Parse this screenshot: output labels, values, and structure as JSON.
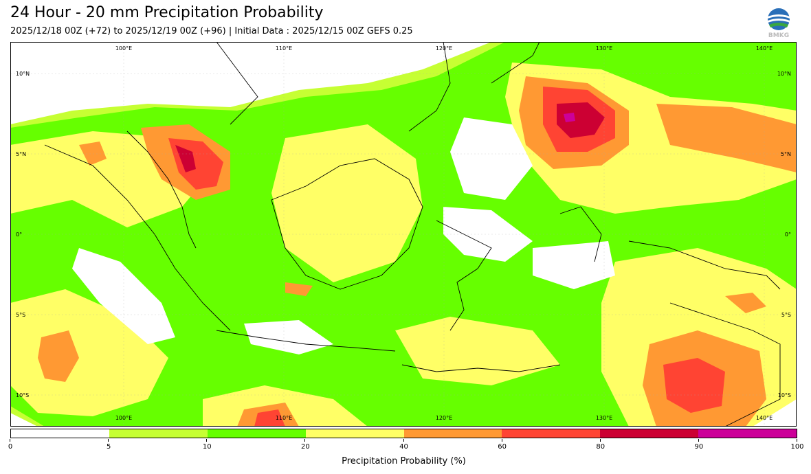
{
  "header": {
    "title": "24 Hour - 20 mm Precipitation Probability",
    "subtitle": "2025/12/18 00Z (+72) to 2025/12/19 00Z (+96) | Initial Data : 2025/12/15 00Z GEFS 0.25"
  },
  "logo": {
    "text": "BMKG",
    "icon": "bmkg-globe-icon"
  },
  "map": {
    "extent": {
      "lon": [
        95,
        144
      ],
      "lat": [
        -12,
        12
      ]
    },
    "lon_labels_top": [
      "100°E",
      "110°E",
      "120°E",
      "130°E",
      "140°E"
    ],
    "lon_labels_bottom": [
      "100°E",
      "110°E",
      "120°E",
      "130°E",
      "140°E"
    ],
    "lat_labels_left": [
      "10°N",
      "5°N",
      "0°",
      "5°S",
      "10°S"
    ],
    "lat_labels_right": [
      "10°N",
      "5°N",
      "0°",
      "5°S",
      "10°S"
    ]
  },
  "colorbar": {
    "label": "Precipitation Probability (%)",
    "bins": [
      {
        "from": 0,
        "to": 5,
        "color": "#ffffff"
      },
      {
        "from": 5,
        "to": 10,
        "color": "#c6ff33"
      },
      {
        "from": 10,
        "to": 20,
        "color": "#66ff00"
      },
      {
        "from": 20,
        "to": 40,
        "color": "#ffff66"
      },
      {
        "from": 40,
        "to": 60,
        "color": "#ff9933"
      },
      {
        "from": 60,
        "to": 80,
        "color": "#ff4433"
      },
      {
        "from": 80,
        "to": 90,
        "color": "#cc0033"
      },
      {
        "from": 90,
        "to": 100,
        "color": "#cc0099"
      }
    ],
    "tick_labels": [
      "0",
      "5",
      "10",
      "20",
      "40",
      "60",
      "80",
      "90",
      "100"
    ]
  }
}
